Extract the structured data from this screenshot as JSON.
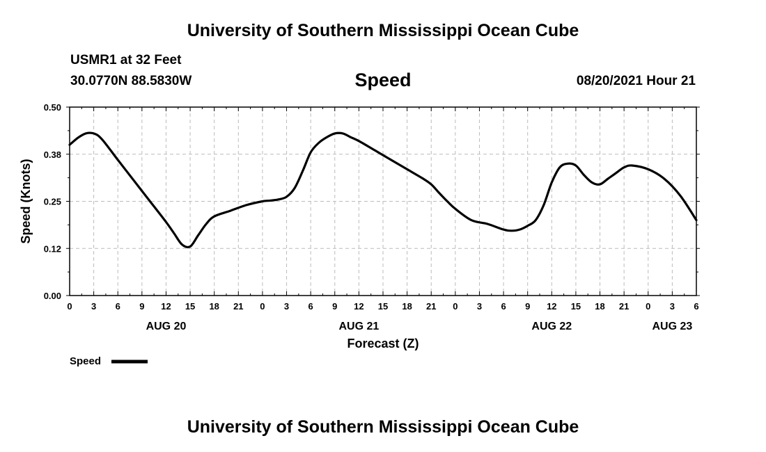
{
  "header": {
    "main_title": "University of Southern Mississippi Ocean Cube",
    "station": "USMR1 at 32 Feet",
    "coords": "30.0770N  88.5830W",
    "chart_title": "Speed",
    "datetime": "08/20/2021 Hour 21"
  },
  "footer": {
    "title": "University of Southern Mississippi Ocean Cube"
  },
  "colors": {
    "line": "#000000",
    "grid": "#bbbbbb",
    "background": "#ffffff"
  },
  "chart_data": {
    "type": "line",
    "title": "Speed",
    "xlabel": "Forecast (Z)",
    "ylabel": "Speed (Knots)",
    "ylim": [
      0,
      0.5
    ],
    "xlim": [
      0,
      78
    ],
    "y_ticks": [
      0.0,
      0.125,
      0.25,
      0.375,
      0.5
    ],
    "y_tick_labels": [
      "0.00",
      "0.12",
      "0.25",
      "0.38",
      "0.50"
    ],
    "x_ticks": [
      0,
      3,
      6,
      9,
      12,
      15,
      18,
      21,
      24,
      27,
      30,
      33,
      36,
      39,
      42,
      45,
      48,
      51,
      54,
      57,
      60,
      63,
      66,
      69,
      72,
      75,
      78
    ],
    "x_tick_labels": [
      "0",
      "3",
      "6",
      "9",
      "12",
      "15",
      "18",
      "21",
      "0",
      "3",
      "6",
      "9",
      "12",
      "15",
      "18",
      "21",
      "0",
      "3",
      "6",
      "9",
      "12",
      "15",
      "18",
      "21",
      "0",
      "3",
      "6"
    ],
    "day_labels": [
      {
        "label": "AUG 20",
        "x": 12
      },
      {
        "label": "AUG 21",
        "x": 36
      },
      {
        "label": "AUG 22",
        "x": 60
      },
      {
        "label": "AUG 23",
        "x": 75
      }
    ],
    "grid": true,
    "legend": "bottom-left",
    "series": [
      {
        "name": "Speed",
        "x": [
          0,
          1,
          2,
          3,
          4,
          6,
          8,
          10,
          12,
          13,
          14,
          15,
          16,
          17,
          18,
          20,
          22,
          24,
          25,
          26,
          27,
          28,
          29,
          30,
          31,
          32,
          33,
          34,
          35,
          36,
          38,
          40,
          42,
          44,
          45,
          46,
          47,
          48,
          50,
          52,
          54,
          55,
          56,
          57,
          58,
          59,
          60,
          61,
          62,
          63,
          64,
          65,
          66,
          67,
          68,
          69,
          70,
          72,
          74,
          76,
          78
        ],
        "values": [
          0.4,
          0.418,
          0.43,
          0.43,
          0.415,
          0.36,
          0.305,
          0.25,
          0.195,
          0.165,
          0.135,
          0.13,
          0.16,
          0.19,
          0.21,
          0.225,
          0.24,
          0.25,
          0.252,
          0.255,
          0.262,
          0.285,
          0.33,
          0.38,
          0.405,
          0.42,
          0.43,
          0.43,
          0.42,
          0.41,
          0.385,
          0.36,
          0.335,
          0.31,
          0.295,
          0.272,
          0.25,
          0.23,
          0.2,
          0.19,
          0.175,
          0.172,
          0.175,
          0.185,
          0.2,
          0.24,
          0.3,
          0.34,
          0.35,
          0.345,
          0.32,
          0.3,
          0.295,
          0.31,
          0.325,
          0.34,
          0.345,
          0.335,
          0.31,
          0.265,
          0.2
        ]
      }
    ]
  }
}
